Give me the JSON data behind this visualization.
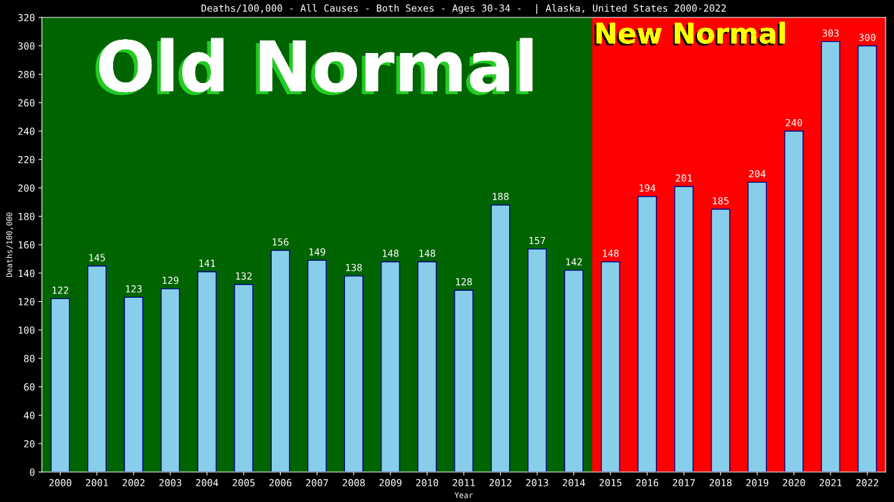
{
  "chart_data": {
    "type": "bar",
    "title": "Deaths/100,000 - All Causes - Both Sexes - Ages 30-34 -  | Alaska, United States 2000-2022",
    "xlabel": "Year",
    "ylabel": "Deaths/100,000",
    "categories": [
      "2000",
      "2001",
      "2002",
      "2003",
      "2004",
      "2005",
      "2006",
      "2007",
      "2008",
      "2009",
      "2010",
      "2011",
      "2012",
      "2013",
      "2014",
      "2015",
      "2016",
      "2017",
      "2018",
      "2019",
      "2020",
      "2021",
      "2022"
    ],
    "values": [
      122,
      145,
      123,
      129,
      141,
      132,
      156,
      149,
      138,
      148,
      148,
      128,
      188,
      157,
      142,
      148,
      194,
      201,
      185,
      204,
      240,
      303,
      300
    ],
    "color": "#87ceeb",
    "data_labels": true,
    "ylim": [
      0,
      320
    ],
    "yticks": [
      0,
      20,
      40,
      60,
      80,
      100,
      120,
      140,
      160,
      180,
      200,
      220,
      240,
      260,
      280,
      300,
      320
    ],
    "grid": false,
    "legend": false,
    "bands": [
      {
        "axis": "x",
        "from": "2000",
        "to": "2014",
        "label": "Old Normal",
        "color": "#006400"
      },
      {
        "axis": "x",
        "from": "2015",
        "to": "2022",
        "label": "New Normal",
        "color": "#ff0000"
      }
    ]
  }
}
